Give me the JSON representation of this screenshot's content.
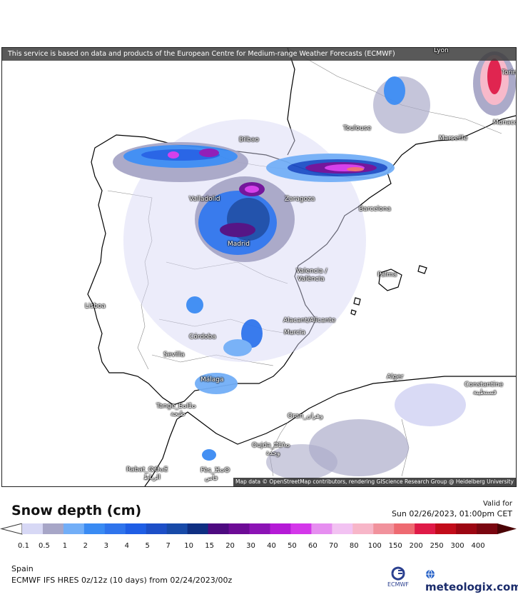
{
  "banner": "This service is based on data and products of the European Centre for Medium-range Weather Forecasts (ECMWF)",
  "attribution": "Map data © OpenStreetMap contributors, rendering GIScience Research Group @ Heidelberg University",
  "title": "Snow depth (cm)",
  "valid_label": "Valid for",
  "valid_time": "Sun 02/26/2023, 01:00pm CET",
  "region": "Spain",
  "model": "ECMWF IFS HRES 0z/12z (10 days) from 02/24/2023/00z",
  "brand": "meteologix.com",
  "ecmwf_label": "ECMWF",
  "cities": [
    {
      "name": "Lyon"
    },
    {
      "name": "Torin"
    },
    {
      "name": "Monaco"
    },
    {
      "name": "Toulouse"
    },
    {
      "name": "Marseille"
    },
    {
      "name": "Bilbao"
    },
    {
      "name": "Valladolid"
    },
    {
      "name": "Zaragoza"
    },
    {
      "name": "Barcelona"
    },
    {
      "name": "Madrid"
    },
    {
      "name": "Valencia /"
    },
    {
      "name": "València"
    },
    {
      "name": "Palma"
    },
    {
      "name": "Lisboa"
    },
    {
      "name": "Alacant/Alicante"
    },
    {
      "name": "Murcia"
    },
    {
      "name": "Córdoba"
    },
    {
      "name": "Sevilla"
    },
    {
      "name": "Málaga"
    },
    {
      "name": "Alger"
    },
    {
      "name": "Constantine"
    },
    {
      "name": "قسنطينة"
    },
    {
      "name": "Tange_ⴹⴰⵏⵊⴰ"
    },
    {
      "name": "طنجة"
    },
    {
      "name": "Oran_وهران"
    },
    {
      "name": "Oujda_ⵓⵊⴷⴰ"
    },
    {
      "name": "وجدة"
    },
    {
      "name": "Rabat_ⵕⴱⴰⵟ"
    },
    {
      "name": "الرباط"
    },
    {
      "name": "Fès_ⴼⴰⵙ"
    },
    {
      "name": "فاس"
    }
  ],
  "scale": {
    "labels": [
      "0.1",
      "0.5",
      "1",
      "2",
      "3",
      "4",
      "5",
      "7",
      "10",
      "15",
      "20",
      "30",
      "40",
      "50",
      "60",
      "70",
      "80",
      "100",
      "150",
      "200",
      "250",
      "300",
      "400"
    ],
    "colors": [
      "#d7d8f5",
      "#a7a6c7",
      "#72aef7",
      "#3a8bf3",
      "#2f74ec",
      "#1f5ee5",
      "#1d4fc7",
      "#184aa8",
      "#0f2f82",
      "#4d0a80",
      "#6d0b96",
      "#8c13b5",
      "#b51ad6",
      "#d437ea",
      "#e68ef0",
      "#f2c2f2",
      "#f7b6c8",
      "#f1929c",
      "#ee6a71",
      "#df1a47",
      "#c20c1a",
      "#9c0612",
      "#7a0610"
    ]
  }
}
